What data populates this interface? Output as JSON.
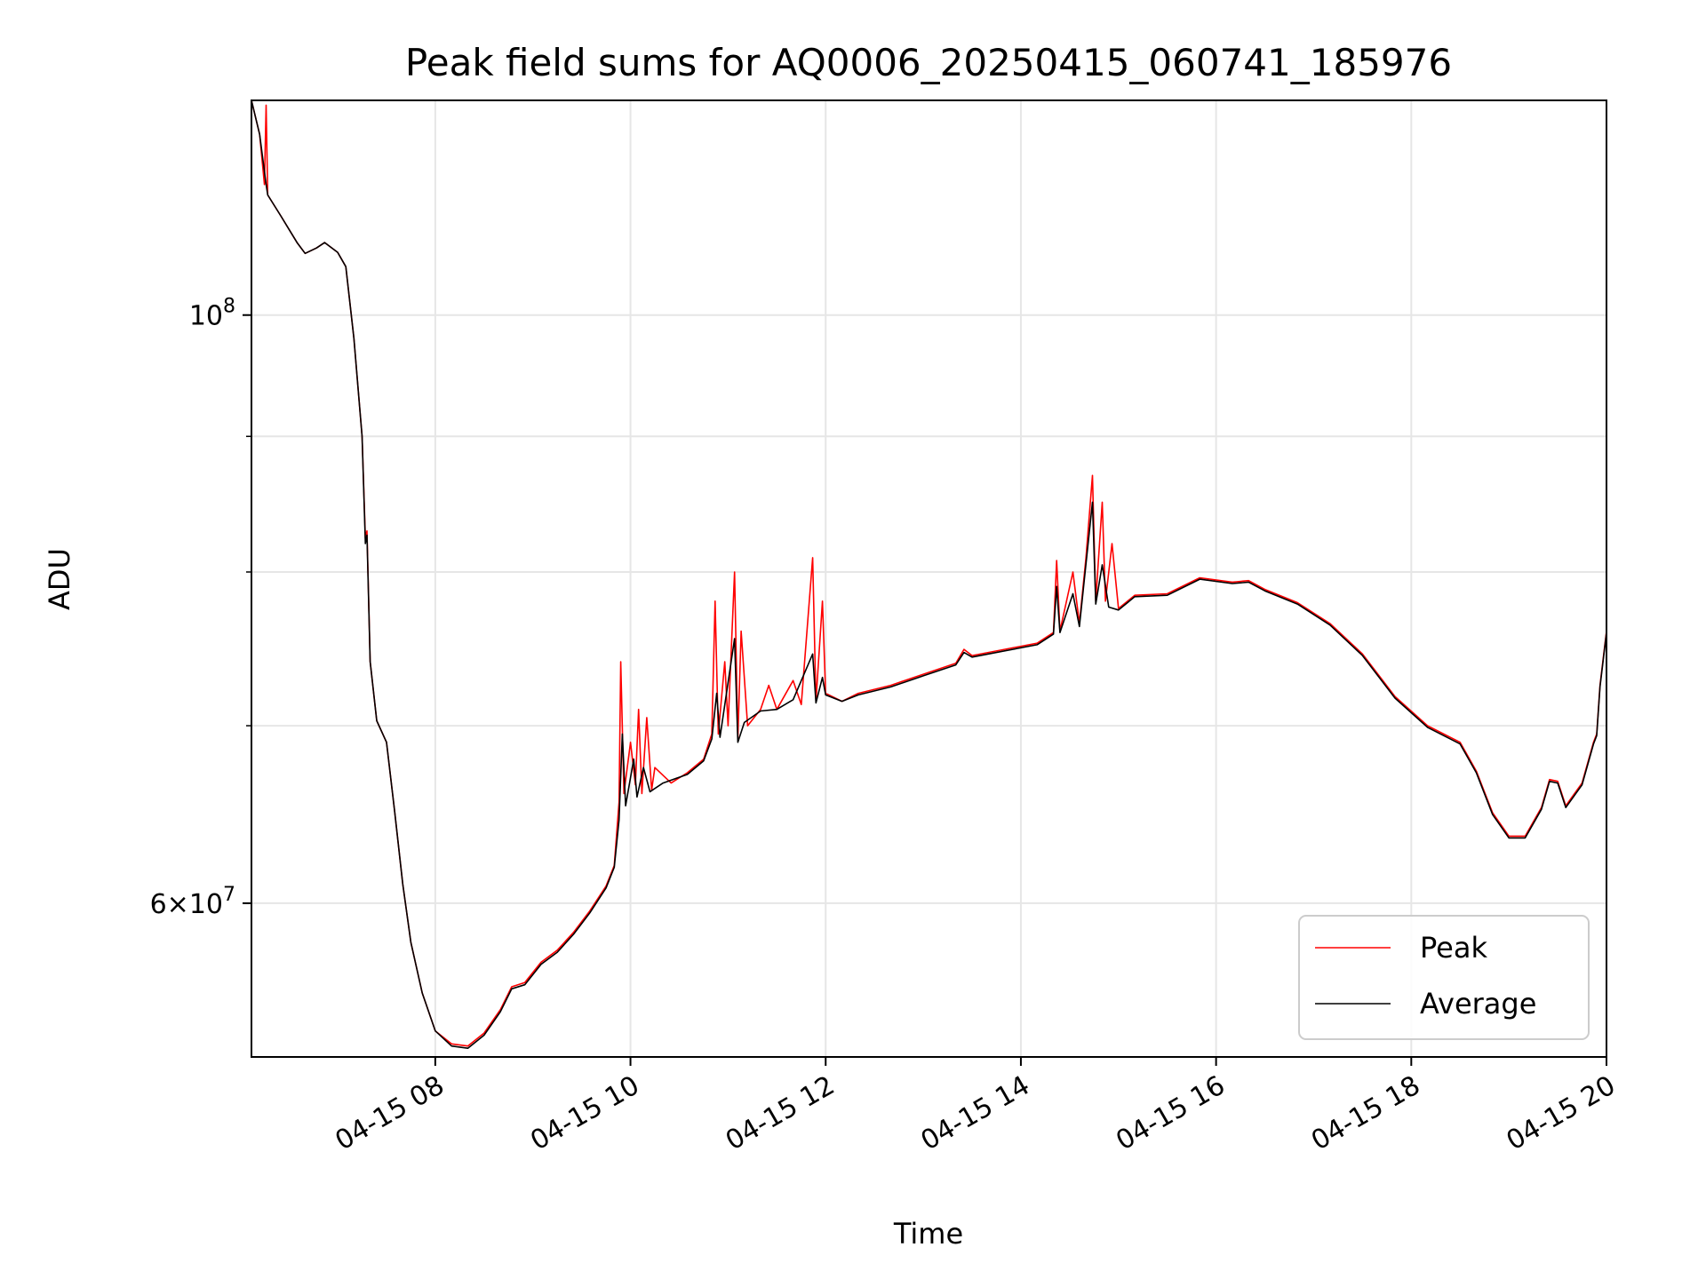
{
  "chart_data": {
    "type": "line",
    "title": "Peak field sums for AQ0006_20250415_060741_185976",
    "xlabel": "Time",
    "ylabel": "ADU",
    "x_axis": {
      "type": "time",
      "range": [
        "2025-04-15T06:07:00",
        "2025-04-15T20:00:00"
      ],
      "ticks": [
        {
          "value": "2025-04-15T08:00:00",
          "label": "04-15 08"
        },
        {
          "value": "2025-04-15T10:00:00",
          "label": "04-15 10"
        },
        {
          "value": "2025-04-15T12:00:00",
          "label": "04-15 12"
        },
        {
          "value": "2025-04-15T14:00:00",
          "label": "04-15 14"
        },
        {
          "value": "2025-04-15T16:00:00",
          "label": "04-15 16"
        },
        {
          "value": "2025-04-15T18:00:00",
          "label": "04-15 18"
        },
        {
          "value": "2025-04-15T20:00:00",
          "label": "04-15 20"
        }
      ]
    },
    "y_axis": {
      "scale": "log",
      "range": [
        52500000,
        120500000
      ],
      "major_ticks": [
        {
          "value": 100000000,
          "base": "10",
          "exp": "8",
          "mult": ""
        },
        {
          "value": 60000000,
          "base": "10",
          "exp": "7",
          "mult": "6"
        }
      ],
      "minor_ticks": [
        70000000,
        80000000,
        90000000
      ]
    },
    "grid": true,
    "legend_position": "lower-right",
    "series": [
      {
        "name": "Peak",
        "color": "#ff0000",
        "points": [
          [
            "2025-04-15T06:07:00",
            120500000
          ],
          [
            "2025-04-15T06:12:00",
            117000000
          ],
          [
            "2025-04-15T06:15:00",
            112000000
          ],
          [
            "2025-04-15T06:16:00",
            120000000
          ],
          [
            "2025-04-15T06:17:00",
            111000000
          ],
          [
            "2025-04-15T06:25:00",
            109000000
          ],
          [
            "2025-04-15T06:35:00",
            106500000
          ],
          [
            "2025-04-15T06:40:00",
            105500000
          ],
          [
            "2025-04-15T06:47:00",
            106000000
          ],
          [
            "2025-04-15T06:52:00",
            106500000
          ],
          [
            "2025-04-15T07:00:00",
            105600000
          ],
          [
            "2025-04-15T07:05:00",
            104300000
          ],
          [
            "2025-04-15T07:10:00",
            98000000
          ],
          [
            "2025-04-15T07:15:00",
            90000000
          ],
          [
            "2025-04-15T07:17:00",
            82400000
          ],
          [
            "2025-04-15T07:18:00",
            82900000
          ],
          [
            "2025-04-15T07:20:00",
            74000000
          ],
          [
            "2025-04-15T07:24:00",
            70300000
          ],
          [
            "2025-04-15T07:30:00",
            69000000
          ],
          [
            "2025-04-15T07:35:00",
            65000000
          ],
          [
            "2025-04-15T07:40:00",
            61000000
          ],
          [
            "2025-04-15T07:45:00",
            58000000
          ],
          [
            "2025-04-15T07:52:00",
            55500000
          ],
          [
            "2025-04-15T08:00:00",
            53700000
          ],
          [
            "2025-04-15T08:10:00",
            53100000
          ],
          [
            "2025-04-15T08:20:00",
            53000000
          ],
          [
            "2025-04-15T08:30:00",
            53600000
          ],
          [
            "2025-04-15T08:40:00",
            54700000
          ],
          [
            "2025-04-15T08:47:00",
            55800000
          ],
          [
            "2025-04-15T08:55:00",
            56000000
          ],
          [
            "2025-04-15T09:05:00",
            57000000
          ],
          [
            "2025-04-15T09:15:00",
            57600000
          ],
          [
            "2025-04-15T09:25:00",
            58500000
          ],
          [
            "2025-04-15T09:35:00",
            59600000
          ],
          [
            "2025-04-15T09:45:00",
            60900000
          ],
          [
            "2025-04-15T09:50:00",
            62000000
          ],
          [
            "2025-04-15T09:53:00",
            65500000
          ],
          [
            "2025-04-15T09:54:00",
            74000000
          ],
          [
            "2025-04-15T09:56:00",
            66000000
          ],
          [
            "2025-04-15T10:00:00",
            69000000
          ],
          [
            "2025-04-15T10:03:00",
            66500000
          ],
          [
            "2025-04-15T10:05:00",
            71000000
          ],
          [
            "2025-04-15T10:07:00",
            66000000
          ],
          [
            "2025-04-15T10:10:00",
            70500000
          ],
          [
            "2025-04-15T10:13:00",
            66200000
          ],
          [
            "2025-04-15T10:15:00",
            67500000
          ],
          [
            "2025-04-15T10:25:00",
            66600000
          ],
          [
            "2025-04-15T10:35:00",
            67200000
          ],
          [
            "2025-04-15T10:45:00",
            68000000
          ],
          [
            "2025-04-15T10:50:00",
            69500000
          ],
          [
            "2025-04-15T10:52:00",
            78000000
          ],
          [
            "2025-04-15T10:54:00",
            69500000
          ],
          [
            "2025-04-15T10:58:00",
            74000000
          ],
          [
            "2025-04-15T11:00:00",
            70000000
          ],
          [
            "2025-04-15T11:04:00",
            80000000
          ],
          [
            "2025-04-15T11:06:00",
            69200000
          ],
          [
            "2025-04-15T11:08:00",
            76000000
          ],
          [
            "2025-04-15T11:12:00",
            70000000
          ],
          [
            "2025-04-15T11:20:00",
            71000000
          ],
          [
            "2025-04-15T11:25:00",
            72500000
          ],
          [
            "2025-04-15T11:30:00",
            71000000
          ],
          [
            "2025-04-15T11:40:00",
            72800000
          ],
          [
            "2025-04-15T11:45:00",
            71300000
          ],
          [
            "2025-04-15T11:52:00",
            81000000
          ],
          [
            "2025-04-15T11:54:00",
            71500000
          ],
          [
            "2025-04-15T11:58:00",
            78000000
          ],
          [
            "2025-04-15T12:00:00",
            72000000
          ],
          [
            "2025-04-15T12:10:00",
            71500000
          ],
          [
            "2025-04-15T12:20:00",
            72000000
          ],
          [
            "2025-04-15T12:40:00",
            72500000
          ],
          [
            "2025-04-15T13:00:00",
            73200000
          ],
          [
            "2025-04-15T13:20:00",
            73900000
          ],
          [
            "2025-04-15T13:25:00",
            74800000
          ],
          [
            "2025-04-15T13:30:00",
            74400000
          ],
          [
            "2025-04-15T13:50:00",
            74800000
          ],
          [
            "2025-04-15T14:10:00",
            75200000
          ],
          [
            "2025-04-15T14:20:00",
            75900000
          ],
          [
            "2025-04-15T14:22:00",
            80800000
          ],
          [
            "2025-04-15T14:24:00",
            76000000
          ],
          [
            "2025-04-15T14:32:00",
            80000000
          ],
          [
            "2025-04-15T14:36:00",
            76500000
          ],
          [
            "2025-04-15T14:40:00",
            81000000
          ],
          [
            "2025-04-15T14:44:00",
            87000000
          ],
          [
            "2025-04-15T14:46:00",
            78000000
          ],
          [
            "2025-04-15T14:50:00",
            85000000
          ],
          [
            "2025-04-15T14:52:00",
            78000000
          ],
          [
            "2025-04-15T14:56:00",
            82000000
          ],
          [
            "2025-04-15T15:00:00",
            77500000
          ],
          [
            "2025-04-15T15:10:00",
            78400000
          ],
          [
            "2025-04-15T15:30:00",
            78500000
          ],
          [
            "2025-04-15T15:50:00",
            79600000
          ],
          [
            "2025-04-15T16:10:00",
            79300000
          ],
          [
            "2025-04-15T16:20:00",
            79400000
          ],
          [
            "2025-04-15T16:30:00",
            78800000
          ],
          [
            "2025-04-15T16:50:00",
            77900000
          ],
          [
            "2025-04-15T17:10:00",
            76500000
          ],
          [
            "2025-04-15T17:30:00",
            74500000
          ],
          [
            "2025-04-15T17:50:00",
            71800000
          ],
          [
            "2025-04-15T18:10:00",
            70000000
          ],
          [
            "2025-04-15T18:30:00",
            69000000
          ],
          [
            "2025-04-15T18:40:00",
            67300000
          ],
          [
            "2025-04-15T18:50:00",
            64900000
          ],
          [
            "2025-04-15T19:00:00",
            63600000
          ],
          [
            "2025-04-15T19:10:00",
            63600000
          ],
          [
            "2025-04-15T19:20:00",
            65200000
          ],
          [
            "2025-04-15T19:25:00",
            66800000
          ],
          [
            "2025-04-15T19:30:00",
            66700000
          ],
          [
            "2025-04-15T19:35:00",
            65300000
          ],
          [
            "2025-04-15T19:45:00",
            66600000
          ],
          [
            "2025-04-15T19:52:00",
            69000000
          ],
          [
            "2025-04-15T19:54:00",
            69500000
          ],
          [
            "2025-04-15T19:56:00",
            72500000
          ],
          [
            "2025-04-15T20:00:00",
            76000000
          ]
        ]
      },
      {
        "name": "Average",
        "color": "#000000",
        "points": [
          [
            "2025-04-15T06:07:00",
            120500000
          ],
          [
            "2025-04-15T06:12:00",
            117000000
          ],
          [
            "2025-04-15T06:16:00",
            112000000
          ],
          [
            "2025-04-15T06:17:00",
            111000000
          ],
          [
            "2025-04-15T06:25:00",
            109000000
          ],
          [
            "2025-04-15T06:35:00",
            106500000
          ],
          [
            "2025-04-15T06:40:00",
            105500000
          ],
          [
            "2025-04-15T06:47:00",
            106000000
          ],
          [
            "2025-04-15T06:52:00",
            106500000
          ],
          [
            "2025-04-15T07:00:00",
            105600000
          ],
          [
            "2025-04-15T07:05:00",
            104300000
          ],
          [
            "2025-04-15T07:10:00",
            98000000
          ],
          [
            "2025-04-15T07:15:00",
            90000000
          ],
          [
            "2025-04-15T07:17:00",
            82000000
          ],
          [
            "2025-04-15T07:18:00",
            82600000
          ],
          [
            "2025-04-15T07:20:00",
            74000000
          ],
          [
            "2025-04-15T07:24:00",
            70300000
          ],
          [
            "2025-04-15T07:30:00",
            69000000
          ],
          [
            "2025-04-15T07:35:00",
            65000000
          ],
          [
            "2025-04-15T07:40:00",
            61000000
          ],
          [
            "2025-04-15T07:45:00",
            58000000
          ],
          [
            "2025-04-15T07:52:00",
            55500000
          ],
          [
            "2025-04-15T08:00:00",
            53700000
          ],
          [
            "2025-04-15T08:10:00",
            53000000
          ],
          [
            "2025-04-15T08:20:00",
            52900000
          ],
          [
            "2025-04-15T08:30:00",
            53500000
          ],
          [
            "2025-04-15T08:40:00",
            54600000
          ],
          [
            "2025-04-15T08:47:00",
            55700000
          ],
          [
            "2025-04-15T08:55:00",
            55900000
          ],
          [
            "2025-04-15T09:05:00",
            56900000
          ],
          [
            "2025-04-15T09:15:00",
            57500000
          ],
          [
            "2025-04-15T09:25:00",
            58400000
          ],
          [
            "2025-04-15T09:35:00",
            59500000
          ],
          [
            "2025-04-15T09:45:00",
            60800000
          ],
          [
            "2025-04-15T09:50:00",
            61900000
          ],
          [
            "2025-04-15T09:53:00",
            64500000
          ],
          [
            "2025-04-15T09:55:00",
            69500000
          ],
          [
            "2025-04-15T09:57:00",
            65300000
          ],
          [
            "2025-04-15T10:02:00",
            68000000
          ],
          [
            "2025-04-15T10:04:00",
            65800000
          ],
          [
            "2025-04-15T10:08:00",
            67500000
          ],
          [
            "2025-04-15T10:12:00",
            66100000
          ],
          [
            "2025-04-15T10:20:00",
            66600000
          ],
          [
            "2025-04-15T10:35:00",
            67100000
          ],
          [
            "2025-04-15T10:45:00",
            67900000
          ],
          [
            "2025-04-15T10:50:00",
            69200000
          ],
          [
            "2025-04-15T10:53:00",
            72000000
          ],
          [
            "2025-04-15T10:55:00",
            69300000
          ],
          [
            "2025-04-15T11:04:00",
            75500000
          ],
          [
            "2025-04-15T11:06:00",
            69000000
          ],
          [
            "2025-04-15T11:10:00",
            70200000
          ],
          [
            "2025-04-15T11:20:00",
            70900000
          ],
          [
            "2025-04-15T11:30:00",
            71000000
          ],
          [
            "2025-04-15T11:40:00",
            71600000
          ],
          [
            "2025-04-15T11:52:00",
            74500000
          ],
          [
            "2025-04-15T11:54:00",
            71400000
          ],
          [
            "2025-04-15T11:58:00",
            73000000
          ],
          [
            "2025-04-15T12:00:00",
            71900000
          ],
          [
            "2025-04-15T12:10:00",
            71500000
          ],
          [
            "2025-04-15T12:20:00",
            71900000
          ],
          [
            "2025-04-15T12:40:00",
            72400000
          ],
          [
            "2025-04-15T13:00:00",
            73100000
          ],
          [
            "2025-04-15T13:20:00",
            73800000
          ],
          [
            "2025-04-15T13:25:00",
            74600000
          ],
          [
            "2025-04-15T13:30:00",
            74300000
          ],
          [
            "2025-04-15T13:50:00",
            74700000
          ],
          [
            "2025-04-15T14:10:00",
            75100000
          ],
          [
            "2025-04-15T14:20:00",
            75800000
          ],
          [
            "2025-04-15T14:22:00",
            79000000
          ],
          [
            "2025-04-15T14:24:00",
            75900000
          ],
          [
            "2025-04-15T14:32:00",
            78500000
          ],
          [
            "2025-04-15T14:36:00",
            76300000
          ],
          [
            "2025-04-15T14:44:00",
            85000000
          ],
          [
            "2025-04-15T14:46:00",
            77800000
          ],
          [
            "2025-04-15T14:50:00",
            80500000
          ],
          [
            "2025-04-15T14:54:00",
            77600000
          ],
          [
            "2025-04-15T15:00:00",
            77400000
          ],
          [
            "2025-04-15T15:10:00",
            78300000
          ],
          [
            "2025-04-15T15:30:00",
            78400000
          ],
          [
            "2025-04-15T15:50:00",
            79500000
          ],
          [
            "2025-04-15T16:10:00",
            79200000
          ],
          [
            "2025-04-15T16:20:00",
            79300000
          ],
          [
            "2025-04-15T16:30:00",
            78700000
          ],
          [
            "2025-04-15T16:50:00",
            77800000
          ],
          [
            "2025-04-15T17:10:00",
            76400000
          ],
          [
            "2025-04-15T17:30:00",
            74400000
          ],
          [
            "2025-04-15T17:50:00",
            71700000
          ],
          [
            "2025-04-15T18:10:00",
            69900000
          ],
          [
            "2025-04-15T18:30:00",
            68900000
          ],
          [
            "2025-04-15T18:40:00",
            67200000
          ],
          [
            "2025-04-15T18:50:00",
            64800000
          ],
          [
            "2025-04-15T19:00:00",
            63500000
          ],
          [
            "2025-04-15T19:10:00",
            63500000
          ],
          [
            "2025-04-15T19:20:00",
            65100000
          ],
          [
            "2025-04-15T19:25:00",
            66700000
          ],
          [
            "2025-04-15T19:30:00",
            66600000
          ],
          [
            "2025-04-15T19:35:00",
            65200000
          ],
          [
            "2025-04-15T19:45:00",
            66500000
          ],
          [
            "2025-04-15T19:52:00",
            68900000
          ],
          [
            "2025-04-15T19:54:00",
            69400000
          ],
          [
            "2025-04-15T19:56:00",
            72400000
          ],
          [
            "2025-04-15T20:00:00",
            75900000
          ]
        ]
      }
    ]
  }
}
